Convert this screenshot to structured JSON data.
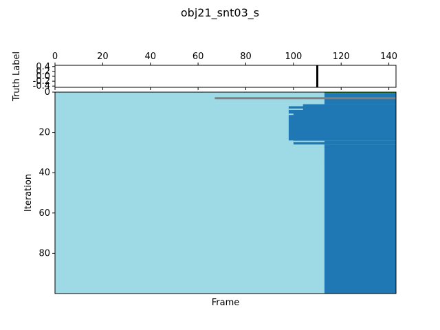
{
  "chart_data": {
    "type": "heatmap",
    "title": "obj21_snt03_s",
    "xlabel": "Frame",
    "top_axis": {
      "ylabel": "Truth Label",
      "xlim": [
        0,
        143
      ],
      "x_ticks": [
        "0",
        "20",
        "40",
        "60",
        "80",
        "100",
        "120",
        "140"
      ],
      "ylim": [
        -0.45,
        0.45
      ],
      "y_ticks": [
        "-0.4",
        "-0.2",
        "0.0",
        "0.2",
        "0.4"
      ],
      "event_frame": 110,
      "event_color": "#000000"
    },
    "main_axis": {
      "ylabel": "Iteration",
      "xlim": [
        0,
        143
      ],
      "ylim": [
        0,
        100
      ],
      "y_ticks": [
        "0",
        "20",
        "40",
        "60",
        "80"
      ],
      "background_color": "#9edae5",
      "fill_color": "#1f77b4",
      "accent_color": "#7f7f7f",
      "label_band_color": "#2ca02c",
      "boundary": [
        {
          "iteration": 0,
          "frame": 113
        },
        {
          "iteration": 6,
          "frame": 104
        },
        {
          "iteration": 7,
          "frame": 98
        },
        {
          "iteration": 24,
          "frame": 100
        },
        {
          "iteration": 26,
          "frame": 113
        }
      ],
      "gray_bar": {
        "iteration": 3,
        "frame_start": 67,
        "frame_end": 143
      },
      "green_band": {
        "iteration": 0,
        "frame_start": 113,
        "frame_end": 143
      },
      "light_stripes": [
        {
          "iteration": 8.5,
          "frame_start": 98,
          "frame_end": 104
        },
        {
          "iteration": 11,
          "frame_start": 98,
          "frame_end": 100
        },
        {
          "iteration": 24.5,
          "frame_start": 100,
          "frame_end": 113
        }
      ],
      "dark_specks": [
        {
          "iteration": 27,
          "frame_start": 113,
          "frame_end": 116
        },
        {
          "iteration": 34,
          "frame_start": 113,
          "frame_end": 114
        }
      ]
    }
  }
}
